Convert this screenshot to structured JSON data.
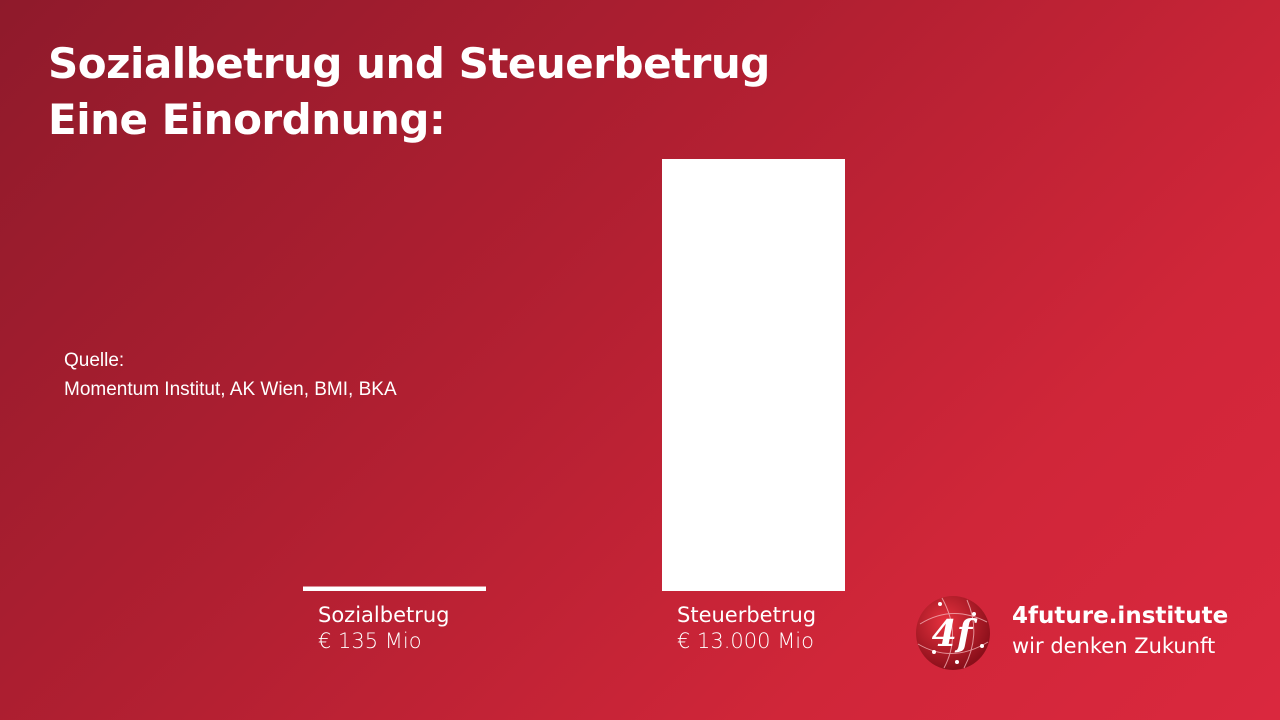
{
  "title_lines": [
    "Sozialbetrug und Steuerbetrug",
    "Eine Einordnung:"
  ],
  "source": {
    "label": "Quelle:",
    "text": "Momentum Institut, AK Wien, BMI, BKA"
  },
  "chart_data": {
    "type": "bar",
    "categories": [
      "Sozialbetrug",
      "Steuerbetrug"
    ],
    "values": [
      135,
      13000
    ],
    "unit": "Mio €",
    "data_labels": [
      "€ 135 Mio",
      "€ 13.000 Mio"
    ],
    "ylim": [
      0,
      13000
    ],
    "grid": false,
    "bar_color": "#ffffff"
  },
  "brand": {
    "name": "4future.institute",
    "tagline": "wir denken Zukunft",
    "logo_text": "4f"
  },
  "colors": {
    "background_start": "#8f1a2b",
    "background_end": "#da283e"
  }
}
